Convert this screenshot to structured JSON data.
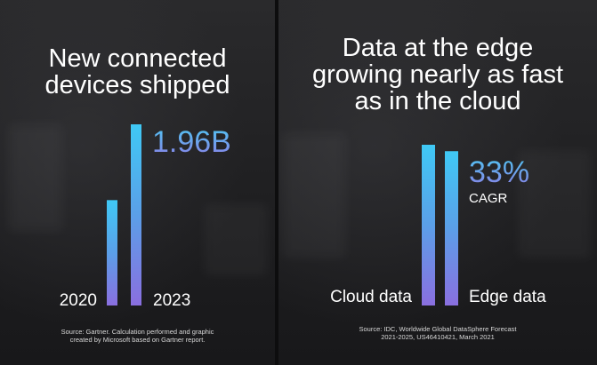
{
  "left": {
    "title_lines": [
      "New connected",
      "devices shipped"
    ],
    "value_label": "1.96B",
    "source_lines": [
      "Source: Gartner. Calculation performed and graphic",
      "created by Microsoft based on Gartner report."
    ]
  },
  "right": {
    "title_lines": [
      "Data at the edge",
      "growing nearly as fast",
      "as in the cloud"
    ],
    "growth_value": "33%",
    "growth_label": "CAGR",
    "source_lines": [
      "Source: IDC, Worldwide Global DataSphere Forecast",
      "2021-2025, US46410421, March 2021"
    ]
  },
  "chart_data": [
    {
      "type": "bar",
      "title": "New connected devices shipped",
      "categories": [
        "2020",
        "2023"
      ],
      "values": [
        1.14,
        1.96
      ],
      "annotations": [
        "1.96B"
      ],
      "ylim": [
        0,
        1.96
      ],
      "grid": false
    },
    {
      "type": "bar",
      "title": "Data at the edge growing nearly as fast as in the cloud",
      "categories": [
        "Cloud data",
        "Edge data"
      ],
      "values": [
        1.0,
        0.96
      ],
      "annotations": [
        "33%",
        "CAGR"
      ],
      "grid": false
    }
  ],
  "colors": {
    "bar_top": "#3fc9f5",
    "bar_bottom": "#8a6fe0",
    "background": "#1c1c1e",
    "text": "#ffffff"
  }
}
